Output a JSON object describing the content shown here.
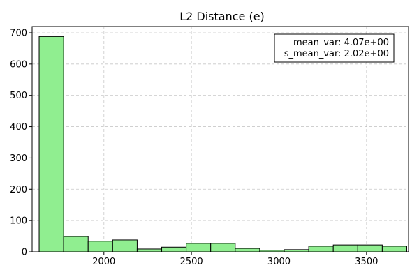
{
  "chart_data": {
    "type": "bar",
    "title": "L2 Distance (e)",
    "xlabel": "",
    "ylabel": "",
    "xlim": [
      1590,
      3740
    ],
    "ylim": [
      0,
      720
    ],
    "xticks": [
      2000,
      2500,
      3000,
      3500
    ],
    "yticks": [
      0,
      100,
      200,
      300,
      400,
      500,
      600,
      700
    ],
    "grid": true,
    "bar_color": "#90ee90",
    "edge_color": "#000000",
    "bins": [
      {
        "x0": 1630,
        "x1": 1770,
        "count": 688
      },
      {
        "x0": 1770,
        "x1": 1910,
        "count": 49
      },
      {
        "x0": 1910,
        "x1": 2050,
        "count": 34
      },
      {
        "x0": 2050,
        "x1": 2190,
        "count": 38
      },
      {
        "x0": 2190,
        "x1": 2330,
        "count": 9
      },
      {
        "x0": 2330,
        "x1": 2470,
        "count": 15
      },
      {
        "x0": 2470,
        "x1": 2610,
        "count": 27
      },
      {
        "x0": 2610,
        "x1": 2750,
        "count": 27
      },
      {
        "x0": 2750,
        "x1": 2890,
        "count": 11
      },
      {
        "x0": 2890,
        "x1": 3030,
        "count": 5
      },
      {
        "x0": 3030,
        "x1": 3170,
        "count": 7
      },
      {
        "x0": 3170,
        "x1": 3310,
        "count": 18
      },
      {
        "x0": 3310,
        "x1": 3450,
        "count": 22
      },
      {
        "x0": 3450,
        "x1": 3590,
        "count": 22
      },
      {
        "x0": 3590,
        "x1": 3730,
        "count": 18
      }
    ],
    "annotation": {
      "lines": [
        "mean_var: 4.07e+00",
        "s_mean_var: 2.02e+00"
      ],
      "placement": "top-right"
    }
  }
}
